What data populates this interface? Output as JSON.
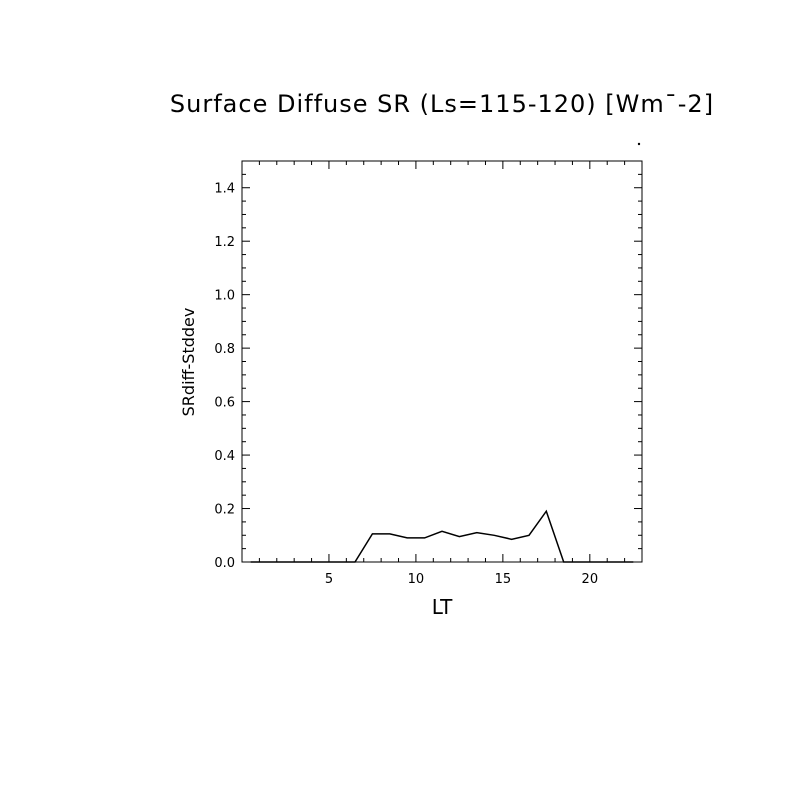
{
  "chart_data": {
    "type": "line",
    "title": "Surface Diffuse SR (Ls=115-120) [Wm¯-2]",
    "xlabel": "LT",
    "ylabel": "SRdiff-Stddev",
    "xlim": [
      0,
      23
    ],
    "ylim": [
      0,
      1.5
    ],
    "x_ticks": [
      5,
      10,
      15,
      20
    ],
    "x_tick_labels": [
      "5",
      "10",
      "15",
      "20"
    ],
    "y_ticks": [
      0.0,
      0.2,
      0.4,
      0.6,
      0.8,
      1.0,
      1.2,
      1.4
    ],
    "y_tick_labels": [
      "0.0",
      "0.2",
      "0.4",
      "0.6",
      "0.8",
      "1.0",
      "1.2",
      "1.4"
    ],
    "grid": false,
    "series": [
      {
        "color": "#000000",
        "x": [
          0.5,
          1.5,
          2.5,
          3.5,
          4.5,
          5.5,
          6.5,
          7.5,
          8.5,
          9.5,
          10.5,
          11.5,
          12.5,
          13.5,
          14.5,
          15.5,
          16.5,
          17.5,
          18.5,
          19.5,
          20.5,
          21.5,
          22.5
        ],
        "y": [
          0,
          0,
          0,
          0,
          0,
          0,
          0,
          0.105,
          0.105,
          0.09,
          0.09,
          0.115,
          0.095,
          0.11,
          0.1,
          0.085,
          0.1,
          0.19,
          0,
          0,
          0,
          0,
          0
        ]
      }
    ]
  }
}
